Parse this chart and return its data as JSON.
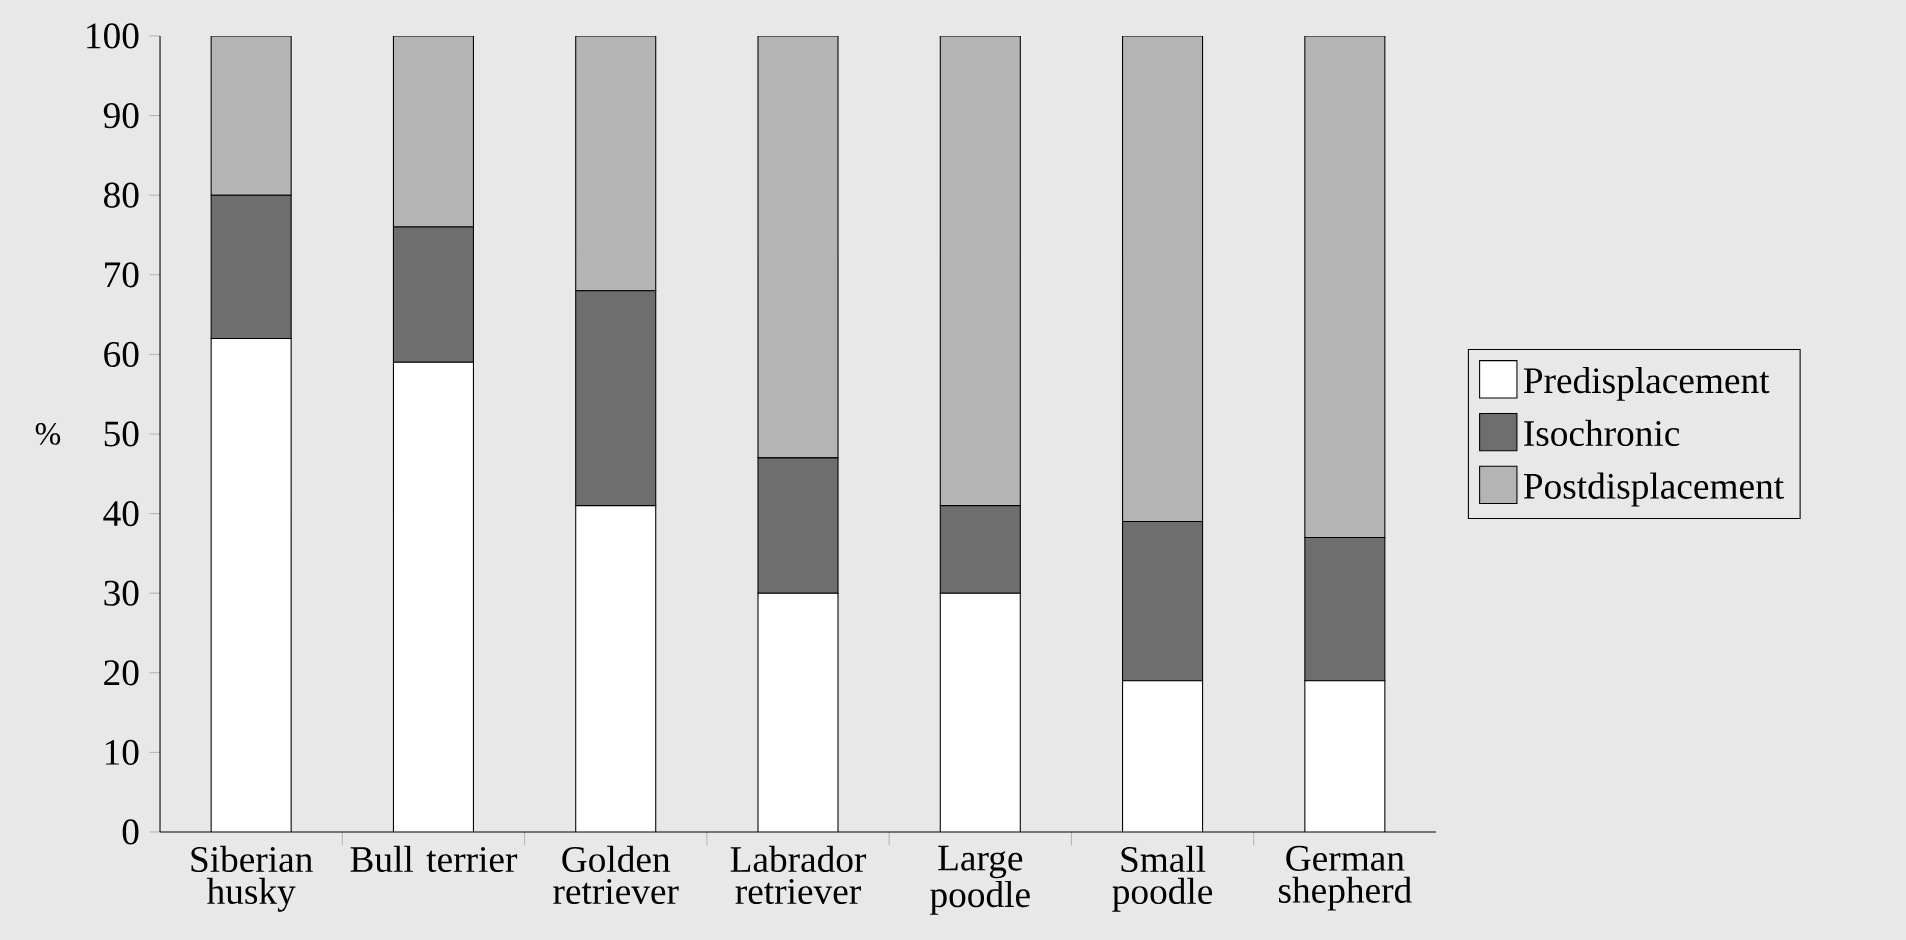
{
  "chart_data": {
    "type": "bar",
    "stacked": true,
    "ylabel": "%",
    "categories": [
      "Siberian husky",
      "Bull terrier",
      "Golden retriever",
      "Labrador retriever",
      "Large poodle",
      "Small poodle",
      "German shepherd"
    ],
    "series": [
      {
        "name": "Predisplacement",
        "color": "#ffffff",
        "values": [
          62,
          59,
          41,
          30,
          30,
          19,
          19
        ]
      },
      {
        "name": "Isochronic",
        "color": "#6e6e6e",
        "values": [
          18,
          17,
          27,
          17,
          11,
          20,
          18
        ]
      },
      {
        "name": "Postdisplacement",
        "color": "#b4b4b4",
        "values": [
          20,
          24,
          32,
          53,
          59,
          61,
          63
        ]
      }
    ],
    "ylim": [
      0,
      100
    ],
    "yticks": [
      0,
      10,
      20,
      30,
      40,
      50,
      60,
      70,
      80,
      90,
      100
    ],
    "grid": false,
    "legend": "right"
  }
}
